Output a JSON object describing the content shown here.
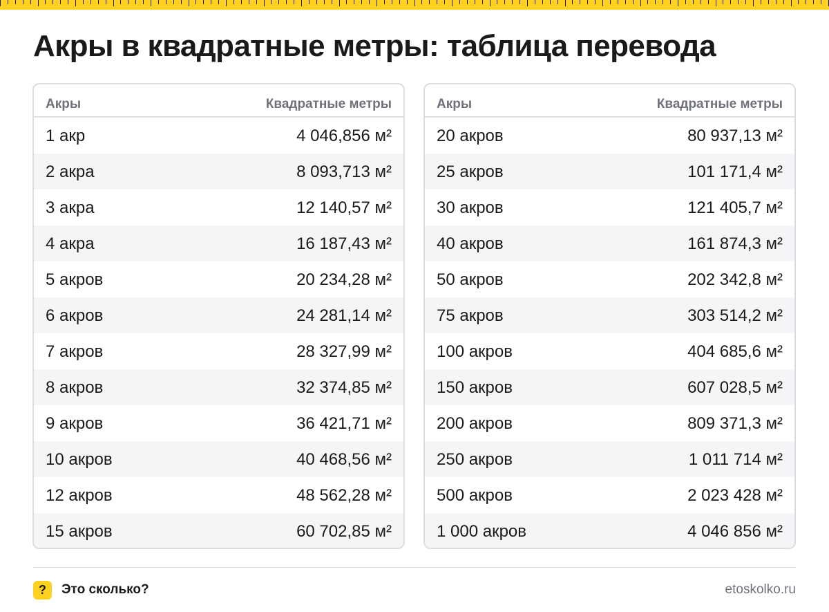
{
  "title": "Акры в квадратные метры: таблица перевода",
  "tables": [
    {
      "col1": "Акры",
      "col2": "Квадратные метры",
      "rows": [
        [
          "1 акр",
          "4 046,856 м²"
        ],
        [
          "2 акра",
          "8 093,713 м²"
        ],
        [
          "3 акра",
          "12 140,57 м²"
        ],
        [
          "4 акра",
          "16 187,43 м²"
        ],
        [
          "5 акров",
          "20 234,28 м²"
        ],
        [
          "6 акров",
          "24 281,14 м²"
        ],
        [
          "7 акров",
          "28 327,99 м²"
        ],
        [
          "8 акров",
          "32 374,85 м²"
        ],
        [
          "9 акров",
          "36 421,71 м²"
        ],
        [
          "10 акров",
          "40 468,56 м²"
        ],
        [
          "12 акров",
          "48 562,28 м²"
        ],
        [
          "15 акров",
          "60 702,85 м²"
        ]
      ]
    },
    {
      "col1": "Акры",
      "col2": "Квадратные метры",
      "rows": [
        [
          "20 акров",
          "80 937,13 м²"
        ],
        [
          "25 акров",
          "101 171,4 м²"
        ],
        [
          "30 акров",
          "121 405,7 м²"
        ],
        [
          "40 акров",
          "161 874,3 м²"
        ],
        [
          "50 акров",
          "202 342,8 м²"
        ],
        [
          "75 акров",
          "303 514,2 м²"
        ],
        [
          "100 акров",
          "404 685,6 м²"
        ],
        [
          "150 акров",
          "607 028,5 м²"
        ],
        [
          "200 акров",
          "809 371,3 м²"
        ],
        [
          "250 акров",
          "1 011 714 м²"
        ],
        [
          "500 акров",
          "2 023 428 м²"
        ],
        [
          "1 000 акров",
          "4 046 856 м²"
        ]
      ]
    }
  ],
  "footer": {
    "logo_mark": "?",
    "brand": "Это сколько?",
    "site": "etoskolko.ru"
  },
  "colors": {
    "accent": "#ffd21f",
    "header_text": "#6f727a",
    "stripe": "#f4f5f7",
    "border": "#dcdde0"
  }
}
